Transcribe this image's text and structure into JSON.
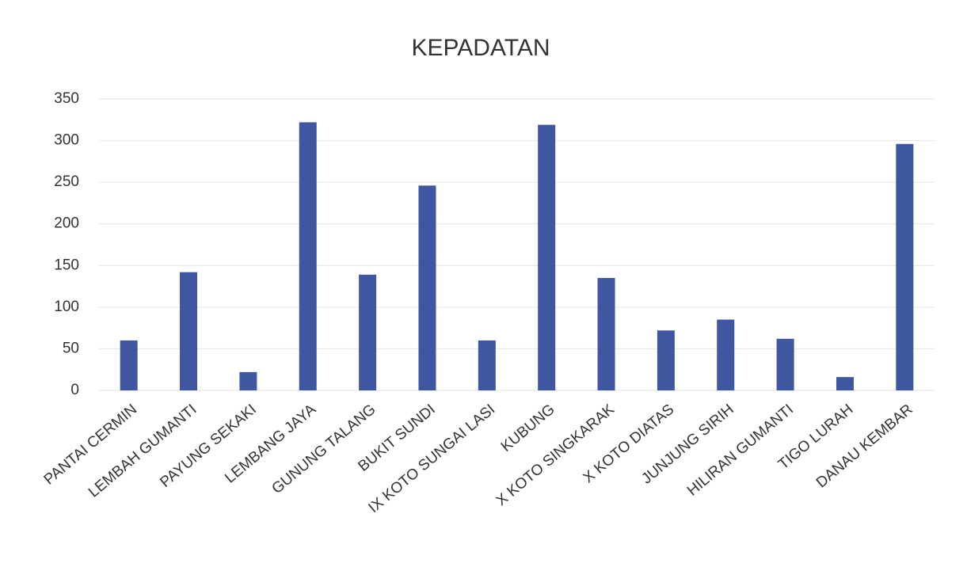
{
  "chart_data": {
    "type": "bar",
    "title": "KEPADATAN",
    "categories": [
      "PANTAI CERMIN",
      "LEMBAH GUMANTI",
      "PAYUNG SEKAKI",
      "LEMBANG JAYA",
      "GUNUNG TALANG",
      "BUKIT SUNDI",
      "IX KOTO SUNGAI LASI",
      "KUBUNG",
      "X KOTO SINGKARAK",
      "X KOTO DIATAS",
      "JUNJUNG SIRIH",
      "HILIRAN GUMANTI",
      "TIGO LURAH",
      "DANAU KEMBAR"
    ],
    "values": [
      60,
      142,
      22,
      322,
      139,
      246,
      60,
      319,
      135,
      72,
      85,
      62,
      16,
      296
    ],
    "color": "#3f57a0",
    "ylim": [
      0,
      350
    ],
    "yticks": [
      0,
      50,
      100,
      150,
      200,
      250,
      300,
      350
    ],
    "grid": true
  }
}
